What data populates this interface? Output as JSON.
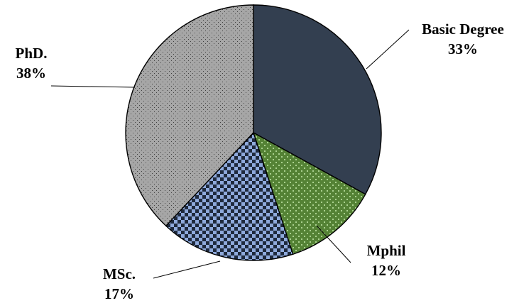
{
  "chart_data": {
    "type": "pie",
    "title": "",
    "start_angle_deg": 0,
    "direction": "clockwise",
    "slices": [
      {
        "label": "Basic Degree",
        "value": 33,
        "value_label": "33%",
        "color": "#333F50",
        "pattern": "solid"
      },
      {
        "label": "Mphil",
        "value": 12,
        "value_label": "12%",
        "color": "#548235",
        "pattern": "dotted-diamond"
      },
      {
        "label": "MSc.",
        "value": 17,
        "value_label": "17%",
        "color": "#8EA9DB",
        "pattern": "checkerboard"
      },
      {
        "label": "PhD.",
        "value": 38,
        "value_label": "38%",
        "color": "#A6A6A6",
        "pattern": "dots"
      }
    ]
  }
}
